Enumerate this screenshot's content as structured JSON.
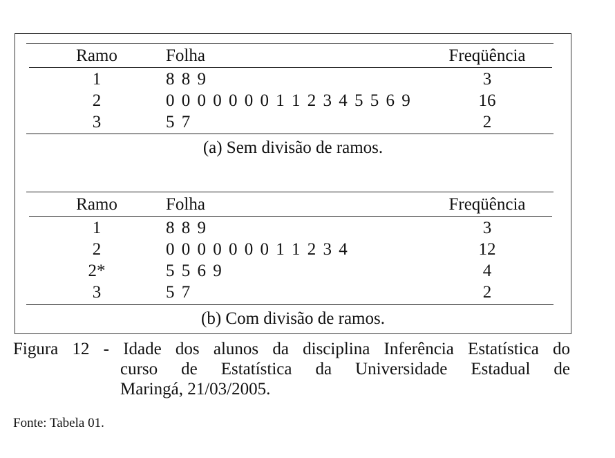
{
  "table_a": {
    "headers": {
      "ramo": "Ramo",
      "folha": "Folha",
      "freq": "Freqüência"
    },
    "rows": [
      {
        "ramo": "1",
        "folha": "8 8 9",
        "freq": "3"
      },
      {
        "ramo": "2",
        "folha": "0 0 0 0 0 0 0 1 1 2 3 4 5 5 6 9",
        "freq": "16"
      },
      {
        "ramo": "3",
        "folha": "5 7",
        "freq": "2"
      }
    ],
    "caption": "(a) Sem divisão de ramos."
  },
  "table_b": {
    "headers": {
      "ramo": "Ramo",
      "folha": "Folha",
      "freq": "Freqüência"
    },
    "rows": [
      {
        "ramo": "1",
        "folha": "8 8 9",
        "freq": "3"
      },
      {
        "ramo": "2",
        "folha": "0 0 0 0 0 0 0 1 1 2 3 4",
        "freq": "12"
      },
      {
        "ramo": "2*",
        "folha": "5 5 6 9",
        "freq": "4"
      },
      {
        "ramo": "3",
        "folha": "5 7",
        "freq": "2"
      }
    ],
    "caption": "(b) Com divisão de ramos."
  },
  "figure": {
    "line1": "Figura 12 - Idade dos alunos da disciplina Inferência Estatística do",
    "line2": "curso de Estatística da Universidade Estadual de",
    "line3": "Maringá, 21/03/2005."
  },
  "source": "Fonte: Tabela 01."
}
